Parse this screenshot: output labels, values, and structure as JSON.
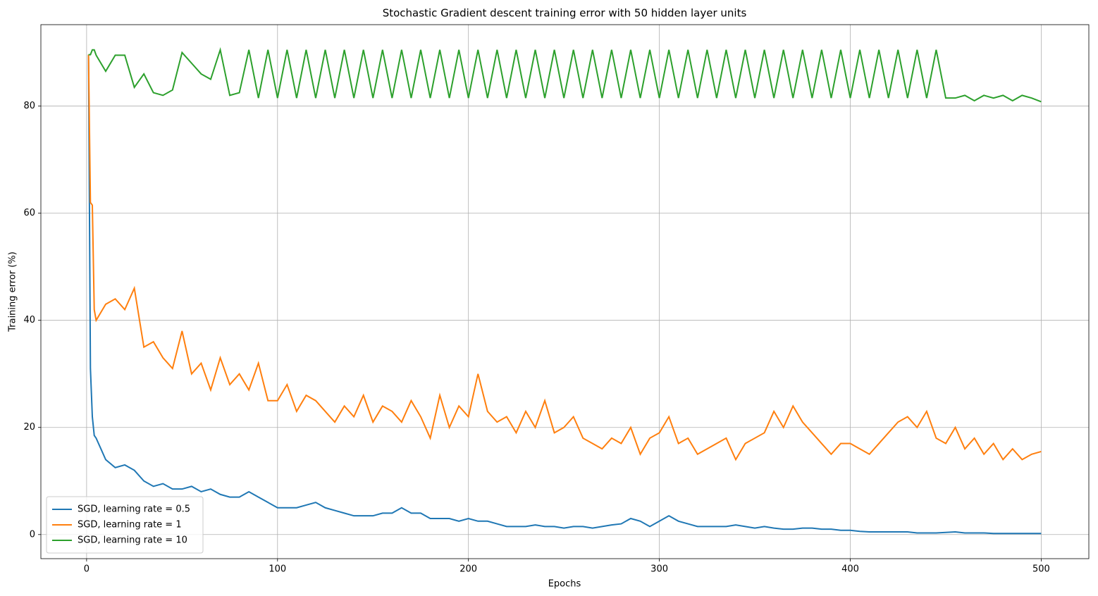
{
  "chart_data": {
    "type": "line",
    "title": "Stochastic Gradient descent training error with 50 hidden layer units",
    "x_label": "Epochs",
    "y_label": "Training error (%)",
    "x": [
      1,
      2,
      3,
      4,
      5,
      10,
      15,
      20,
      25,
      30,
      35,
      40,
      45,
      50,
      55,
      60,
      65,
      70,
      75,
      80,
      85,
      90,
      95,
      100,
      105,
      110,
      115,
      120,
      125,
      130,
      135,
      140,
      145,
      150,
      155,
      160,
      165,
      170,
      175,
      180,
      185,
      190,
      195,
      200,
      205,
      210,
      215,
      220,
      225,
      230,
      235,
      240,
      245,
      250,
      255,
      260,
      265,
      270,
      275,
      280,
      285,
      290,
      295,
      300,
      305,
      310,
      315,
      320,
      325,
      330,
      335,
      340,
      345,
      350,
      355,
      360,
      365,
      370,
      375,
      380,
      385,
      390,
      395,
      400,
      405,
      410,
      415,
      420,
      425,
      430,
      435,
      440,
      445,
      450,
      455,
      460,
      465,
      470,
      475,
      480,
      485,
      490,
      495,
      500
    ],
    "series": [
      {
        "name": "SGD, learning rate = 0.5",
        "color": "#1f77b4",
        "values": [
          89.6,
          31,
          22,
          18.5,
          18,
          14,
          12.5,
          13,
          12,
          10,
          9,
          9.5,
          8.5,
          8.5,
          9,
          8,
          8.5,
          7.5,
          7,
          7,
          8,
          7,
          6,
          5,
          5,
          5,
          5.5,
          6,
          5,
          4.5,
          4,
          3.5,
          3.5,
          3.5,
          4,
          4,
          5,
          4,
          4,
          3,
          3,
          3,
          2.5,
          3,
          2.5,
          2.5,
          2,
          1.5,
          1.5,
          1.5,
          1.8,
          1.5,
          1.5,
          1.2,
          1.5,
          1.5,
          1.2,
          1.5,
          1.8,
          2,
          3,
          2.5,
          1.5,
          2.5,
          3.5,
          2.5,
          2,
          1.5,
          1.5,
          1.5,
          1.5,
          1.8,
          1.5,
          1.2,
          1.5,
          1.2,
          1,
          1,
          1.2,
          1.2,
          1,
          1,
          0.8,
          0.8,
          0.6,
          0.5,
          0.5,
          0.5,
          0.5,
          0.5,
          0.3,
          0.3,
          0.3,
          0.4,
          0.5,
          0.3,
          0.3,
          0.3,
          0.2,
          0.2,
          0.2,
          0.2,
          0.2,
          0.2
        ]
      },
      {
        "name": "SGD, learning rate = 1",
        "color": "#ff7f0e",
        "values": [
          89.6,
          62,
          61.5,
          42,
          40,
          43,
          44,
          42,
          46,
          35,
          36,
          33,
          31,
          38,
          30,
          32,
          27,
          33,
          28,
          30,
          27,
          32,
          25,
          25,
          28,
          23,
          26,
          25,
          23,
          21,
          24,
          22,
          26,
          21,
          24,
          23,
          21,
          25,
          22,
          18,
          26,
          20,
          24,
          22,
          30,
          23,
          21,
          22,
          19,
          23,
          20,
          25,
          19,
          20,
          22,
          18,
          17,
          16,
          18,
          17,
          20,
          15,
          18,
          19,
          22,
          17,
          18,
          15,
          16,
          17,
          18,
          14,
          17,
          18,
          19,
          23,
          20,
          24,
          21,
          19,
          17,
          15,
          17,
          17,
          16,
          15,
          17,
          19,
          21,
          22,
          20,
          23,
          18,
          17,
          20,
          16,
          18,
          15,
          17,
          14,
          16,
          14,
          15,
          15.5
        ]
      },
      {
        "name": "SGD, learning rate = 10",
        "color": "#2ca02c",
        "values": [
          89.6,
          89.6,
          90.5,
          90.5,
          89.5,
          86.5,
          89.5,
          89.5,
          83.5,
          86,
          82.5,
          82,
          83,
          90,
          88,
          86,
          85,
          90.5,
          82,
          82.5,
          90.5,
          81.5,
          90.5,
          81.5,
          90.5,
          81.5,
          90.5,
          81.5,
          90.5,
          81.5,
          90.5,
          81.5,
          90.5,
          81.5,
          90.5,
          81.5,
          90.5,
          81.5,
          90.5,
          81.5,
          90.5,
          81.5,
          90.5,
          81.5,
          90.5,
          81.5,
          90.5,
          81.5,
          90.5,
          81.5,
          90.5,
          81.5,
          90.5,
          81.5,
          90.5,
          81.5,
          90.5,
          81.5,
          90.5,
          81.5,
          90.5,
          81.5,
          90.5,
          81.5,
          90.5,
          81.5,
          90.5,
          81.5,
          90.5,
          81.5,
          90.5,
          81.5,
          90.5,
          81.5,
          90.5,
          81.5,
          90.5,
          81.5,
          90.5,
          81.5,
          90.5,
          81.5,
          90.5,
          81.5,
          90.5,
          81.5,
          90.5,
          81.5,
          90.5,
          81.5,
          90.5,
          81.5,
          90.5,
          81.5,
          81.5,
          82,
          81,
          82,
          81.5,
          82,
          81,
          82,
          81.5,
          80.8
        ]
      }
    ],
    "xlim": [
      -23.95,
      524.95
    ],
    "ylim": [
      -4.5,
      95.2
    ],
    "xticks": [
      0,
      100,
      200,
      300,
      400,
      500
    ],
    "yticks": [
      0,
      20,
      40,
      60,
      80
    ],
    "grid": true,
    "legend": "lower left"
  }
}
